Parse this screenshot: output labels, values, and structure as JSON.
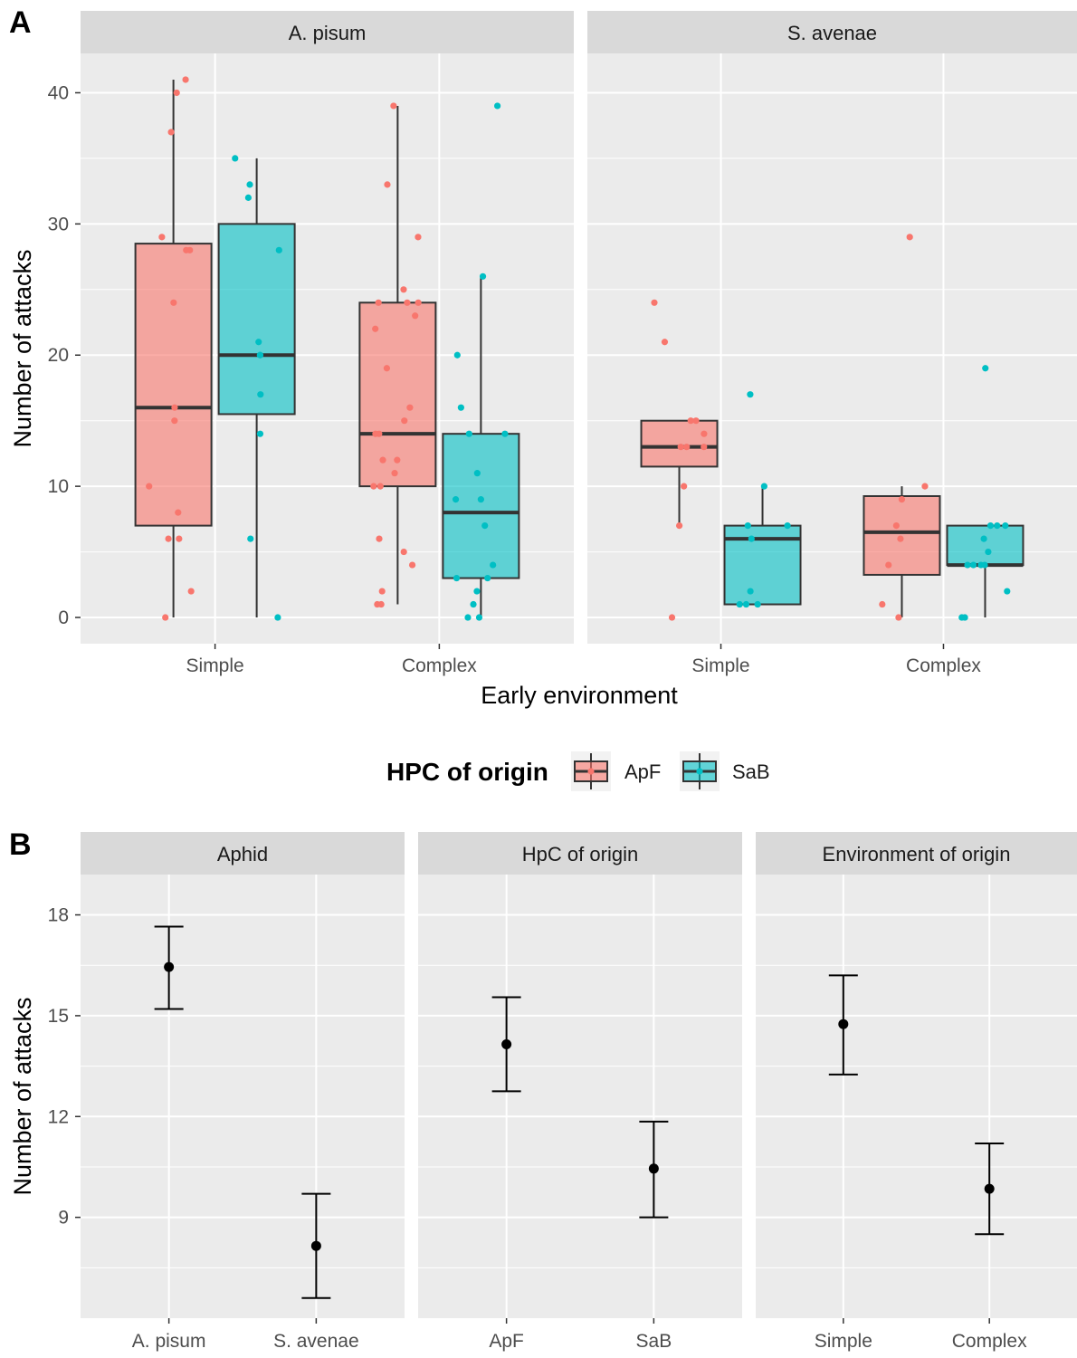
{
  "colors": {
    "panel_bg": "#EBEBEB",
    "strip_bg": "#D9D9D9",
    "grid": "#FFFFFF",
    "ApF": "#F8766D",
    "SaB": "#00BFC4",
    "box_line": "#333333",
    "point": "#000000"
  },
  "panel_tags": {
    "a": "A",
    "b": "B"
  },
  "legend": {
    "title": "HPC of origin",
    "items": [
      {
        "label": "ApF",
        "color": "#F8766D"
      },
      {
        "label": "SaB",
        "color": "#00BFC4"
      }
    ]
  },
  "chart_data": [
    {
      "type": "box",
      "panel": "A",
      "xlabel": "Early environment",
      "ylabel": "Number of attacks",
      "ylim": [
        -2,
        43
      ],
      "yticks": [
        0,
        10,
        20,
        30,
        40
      ],
      "categories": [
        "Simple",
        "Complex"
      ],
      "facets": [
        {
          "name": "A. pisum",
          "groups": [
            {
              "category": "Simple",
              "series": "ApF",
              "min": 0,
              "q1": 7,
              "median": 16,
              "q3": 28.5,
              "max": 41,
              "points": [
                41,
                40,
                37,
                29,
                28,
                28,
                24,
                16,
                15,
                10,
                8,
                6,
                6,
                2,
                0
              ]
            },
            {
              "category": "Simple",
              "series": "SaB",
              "min": 0,
              "q1": 15.5,
              "median": 20,
              "q3": 30,
              "max": 35,
              "points": [
                35,
                33,
                32,
                28,
                21,
                20,
                20,
                17,
                14,
                6,
                0
              ]
            },
            {
              "category": "Complex",
              "series": "ApF",
              "min": 1,
              "q1": 10,
              "median": 14,
              "q3": 24,
              "max": 39,
              "points": [
                39,
                33,
                29,
                25,
                24,
                24,
                24,
                23,
                22,
                19,
                16,
                15,
                14,
                14,
                12,
                12,
                11,
                10,
                10,
                6,
                5,
                4,
                2,
                1,
                1
              ]
            },
            {
              "category": "Complex",
              "series": "SaB",
              "min": 0,
              "q1": 3,
              "median": 8,
              "q3": 14,
              "max": 26,
              "points": [
                39,
                26,
                20,
                16,
                14,
                14,
                11,
                9,
                9,
                7,
                4,
                3,
                3,
                2,
                1,
                0,
                0
              ]
            }
          ]
        },
        {
          "name": "S. avenae",
          "groups": [
            {
              "category": "Simple",
              "series": "ApF",
              "min": 7,
              "q1": 11.5,
              "median": 13,
              "q3": 15,
              "max": 15,
              "points": [
                24,
                21,
                15,
                15,
                14,
                13,
                13,
                13,
                10,
                7,
                0
              ]
            },
            {
              "category": "Simple",
              "series": "SaB",
              "min": 1,
              "q1": 1,
              "median": 6,
              "q3": 7,
              "max": 10,
              "points": [
                17,
                10,
                7,
                7,
                6,
                2,
                1,
                1,
                1
              ]
            },
            {
              "category": "Complex",
              "series": "ApF",
              "min": 0,
              "q1": 3.25,
              "median": 6.5,
              "q3": 9.25,
              "max": 10,
              "points": [
                29,
                10,
                9,
                7,
                6,
                4,
                1,
                0
              ]
            },
            {
              "category": "Complex",
              "series": "SaB",
              "min": 0,
              "q1": 4,
              "median": 4,
              "q3": 7,
              "max": 7,
              "points": [
                19,
                7,
                7,
                7,
                6,
                5,
                4,
                4,
                4,
                4,
                2,
                0,
                0
              ]
            }
          ]
        }
      ]
    },
    {
      "type": "errorbar",
      "panel": "B",
      "ylabel": "Number of attacks",
      "ylim": [
        6,
        19.2
      ],
      "yticks": [
        9,
        12,
        15,
        18
      ],
      "facets": [
        {
          "name": "Aphid",
          "categories": [
            "A. pisum",
            "S. avenae"
          ],
          "mean": [
            16.45,
            8.15
          ],
          "lower": [
            15.2,
            6.6
          ],
          "upper": [
            17.65,
            9.7
          ]
        },
        {
          "name": "HpC of origin",
          "categories": [
            "ApF",
            "SaB"
          ],
          "mean": [
            14.15,
            10.45
          ],
          "lower": [
            12.75,
            9.0
          ],
          "upper": [
            15.55,
            11.85
          ]
        },
        {
          "name": "Environment of origin",
          "categories": [
            "Simple",
            "Complex"
          ],
          "mean": [
            14.75,
            9.85
          ],
          "lower": [
            13.25,
            8.5
          ],
          "upper": [
            16.2,
            11.2
          ]
        }
      ]
    }
  ]
}
